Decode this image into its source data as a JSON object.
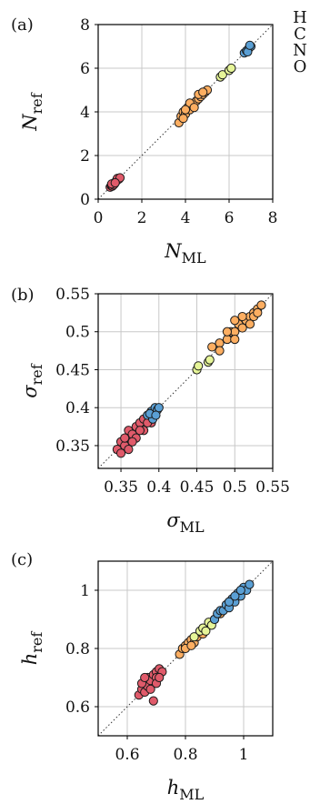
{
  "legend": {
    "placement": "top-right",
    "entries": [
      "H",
      "C",
      "N",
      "O"
    ]
  },
  "colors": {
    "H": "#e05a6a",
    "C": "#fdae61",
    "N": "#e6f598",
    "O": "#5a9fd4"
  },
  "chart_data": [
    {
      "type": "scatter",
      "panel_label": "(a)",
      "xlabel_base": "N",
      "xlabel_sub": "ML",
      "ylabel_base": "N",
      "ylabel_sub": "ref",
      "xlim": [
        0,
        8
      ],
      "ylim": [
        0,
        8
      ],
      "xticks": [
        0,
        2,
        4,
        6,
        8
      ],
      "yticks": [
        0,
        2,
        4,
        6,
        8
      ],
      "xtick_labels": [
        "0",
        "2",
        "4",
        "6",
        "8"
      ],
      "ytick_labels": [
        "0",
        "2",
        "4",
        "6",
        "8"
      ],
      "grid": true,
      "series": [
        {
          "element": "H",
          "points": [
            [
              0.55,
              0.55
            ],
            [
              0.6,
              0.62
            ],
            [
              0.65,
              0.6
            ],
            [
              0.7,
              0.72
            ],
            [
              0.75,
              0.7
            ],
            [
              0.8,
              0.8
            ],
            [
              0.85,
              0.85
            ],
            [
              0.9,
              0.9
            ],
            [
              0.95,
              0.92
            ],
            [
              0.7,
              0.65
            ],
            [
              0.62,
              0.7
            ],
            [
              0.88,
              0.95
            ],
            [
              1.0,
              0.98
            ],
            [
              0.78,
              0.75
            ]
          ]
        },
        {
          "element": "C",
          "points": [
            [
              3.7,
              3.5
            ],
            [
              3.8,
              3.8
            ],
            [
              3.9,
              4.0
            ],
            [
              4.0,
              3.9
            ],
            [
              4.1,
              4.2
            ],
            [
              4.2,
              4.1
            ],
            [
              4.3,
              4.3
            ],
            [
              4.4,
              4.4
            ],
            [
              4.5,
              4.5
            ],
            [
              4.6,
              4.6
            ],
            [
              4.7,
              4.7
            ],
            [
              4.8,
              4.8
            ],
            [
              4.9,
              4.9
            ],
            [
              5.0,
              5.0
            ],
            [
              4.2,
              4.4
            ],
            [
              4.4,
              4.2
            ],
            [
              4.6,
              4.8
            ],
            [
              3.9,
              3.7
            ],
            [
              4.0,
              4.1
            ],
            [
              4.8,
              4.9
            ]
          ]
        },
        {
          "element": "N",
          "points": [
            [
              5.6,
              5.6
            ],
            [
              5.7,
              5.7
            ],
            [
              6.0,
              5.9
            ],
            [
              6.1,
              6.0
            ]
          ]
        },
        {
          "element": "O",
          "points": [
            [
              6.7,
              6.7
            ],
            [
              6.8,
              6.8
            ],
            [
              6.9,
              6.9
            ],
            [
              7.0,
              7.0
            ],
            [
              6.85,
              6.75
            ],
            [
              6.95,
              7.05
            ]
          ]
        }
      ]
    },
    {
      "type": "scatter",
      "panel_label": "(b)",
      "xlabel_base": "σ",
      "xlabel_sub": "ML",
      "ylabel_base": "σ",
      "ylabel_sub": "ref",
      "xlim": [
        0.32,
        0.55
      ],
      "ylim": [
        0.32,
        0.55
      ],
      "xticks": [
        0.35,
        0.4,
        0.45,
        0.5,
        0.55
      ],
      "yticks": [
        0.35,
        0.4,
        0.45,
        0.5,
        0.55
      ],
      "xtick_labels": [
        "0.35",
        "0.4",
        "0.45",
        "0.5",
        "0.55"
      ],
      "ytick_labels": [
        "0.35",
        "0.4",
        "0.45",
        "0.5",
        "0.55"
      ],
      "grid": true,
      "series": [
        {
          "element": "H",
          "points": [
            [
              0.345,
              0.345
            ],
            [
              0.35,
              0.34
            ],
            [
              0.35,
              0.355
            ],
            [
              0.355,
              0.35
            ],
            [
              0.36,
              0.36
            ],
            [
              0.36,
              0.37
            ],
            [
              0.365,
              0.365
            ],
            [
              0.37,
              0.375
            ],
            [
              0.37,
              0.36
            ],
            [
              0.375,
              0.38
            ],
            [
              0.38,
              0.385
            ],
            [
              0.38,
              0.37
            ],
            [
              0.385,
              0.39
            ],
            [
              0.39,
              0.395
            ],
            [
              0.39,
              0.38
            ],
            [
              0.355,
              0.36
            ],
            [
              0.365,
              0.355
            ],
            [
              0.375,
              0.37
            ],
            [
              0.385,
              0.38
            ],
            [
              0.36,
              0.345
            ]
          ]
        },
        {
          "element": "C",
          "points": [
            [
              0.47,
              0.48
            ],
            [
              0.48,
              0.485
            ],
            [
              0.49,
              0.49
            ],
            [
              0.495,
              0.5
            ],
            [
              0.5,
              0.5
            ],
            [
              0.505,
              0.51
            ],
            [
              0.51,
              0.505
            ],
            [
              0.515,
              0.515
            ],
            [
              0.52,
              0.52
            ],
            [
              0.525,
              0.525
            ],
            [
              0.53,
              0.53
            ],
            [
              0.535,
              0.535
            ],
            [
              0.49,
              0.5
            ],
            [
              0.5,
              0.49
            ],
            [
              0.51,
              0.52
            ],
            [
              0.52,
              0.51
            ],
            [
              0.48,
              0.475
            ],
            [
              0.5,
              0.515
            ],
            [
              0.525,
              0.52
            ],
            [
              0.53,
              0.525
            ]
          ]
        },
        {
          "element": "N",
          "points": [
            [
              0.45,
              0.45
            ],
            [
              0.452,
              0.455
            ],
            [
              0.465,
              0.46
            ],
            [
              0.467,
              0.463
            ]
          ]
        },
        {
          "element": "O",
          "points": [
            [
              0.385,
              0.39
            ],
            [
              0.39,
              0.395
            ],
            [
              0.395,
              0.4
            ],
            [
              0.398,
              0.397
            ],
            [
              0.4,
              0.4
            ],
            [
              0.392,
              0.385
            ],
            [
              0.388,
              0.392
            ],
            [
              0.396,
              0.39
            ]
          ]
        }
      ]
    },
    {
      "type": "scatter",
      "panel_label": "(c)",
      "xlabel_base": "h",
      "xlabel_sub": "ML",
      "ylabel_base": "h",
      "ylabel_sub": "ref",
      "xlim": [
        0.5,
        1.1
      ],
      "ylim": [
        0.5,
        1.1
      ],
      "xticks": [
        0.6,
        0.8,
        1.0
      ],
      "yticks": [
        0.6,
        0.8,
        1.0
      ],
      "xtick_labels": [
        "0.6",
        "0.8",
        "1"
      ],
      "ytick_labels": [
        "0.6",
        "0.8",
        "1"
      ],
      "grid": true,
      "series": [
        {
          "element": "H",
          "points": [
            [
              0.64,
              0.64
            ],
            [
              0.65,
              0.66
            ],
            [
              0.66,
              0.65
            ],
            [
              0.66,
              0.68
            ],
            [
              0.67,
              0.67
            ],
            [
              0.67,
              0.7
            ],
            [
              0.68,
              0.69
            ],
            [
              0.69,
              0.71
            ],
            [
              0.7,
              0.72
            ],
            [
              0.7,
              0.7
            ],
            [
              0.71,
              0.73
            ],
            [
              0.72,
              0.72
            ],
            [
              0.65,
              0.68
            ],
            [
              0.68,
              0.66
            ],
            [
              0.69,
              0.62
            ],
            [
              0.66,
              0.7
            ],
            [
              0.7,
              0.68
            ],
            [
              0.71,
              0.7
            ]
          ]
        },
        {
          "element": "C",
          "points": [
            [
              0.78,
              0.78
            ],
            [
              0.79,
              0.8
            ],
            [
              0.8,
              0.81
            ],
            [
              0.81,
              0.82
            ],
            [
              0.82,
              0.83
            ],
            [
              0.83,
              0.82
            ],
            [
              0.85,
              0.85
            ],
            [
              0.87,
              0.87
            ],
            [
              0.88,
              0.88
            ],
            [
              0.9,
              0.9
            ],
            [
              0.92,
              0.92
            ],
            [
              0.94,
              0.94
            ],
            [
              0.95,
              0.96
            ],
            [
              0.97,
              0.97
            ],
            [
              0.98,
              0.98
            ],
            [
              1.0,
              1.0
            ],
            [
              0.8,
              0.8
            ],
            [
              0.82,
              0.81
            ],
            [
              0.84,
              0.84
            ],
            [
              0.86,
              0.85
            ]
          ]
        },
        {
          "element": "N",
          "points": [
            [
              0.83,
              0.84
            ],
            [
              0.85,
              0.86
            ],
            [
              0.86,
              0.87
            ],
            [
              0.87,
              0.86
            ],
            [
              0.88,
              0.89
            ],
            [
              0.89,
              0.88
            ]
          ]
        },
        {
          "element": "O",
          "points": [
            [
              0.9,
              0.9
            ],
            [
              0.91,
              0.92
            ],
            [
              0.92,
              0.93
            ],
            [
              0.93,
              0.93
            ],
            [
              0.94,
              0.95
            ],
            [
              0.95,
              0.94
            ],
            [
              0.96,
              0.97
            ],
            [
              0.97,
              0.96
            ],
            [
              0.98,
              0.99
            ],
            [
              0.99,
              0.98
            ],
            [
              1.0,
              1.01
            ],
            [
              1.01,
              1.0
            ],
            [
              1.02,
              1.02
            ],
            [
              0.95,
              0.96
            ],
            [
              0.97,
              0.98
            ],
            [
              0.99,
              1.0
            ]
          ]
        }
      ]
    }
  ]
}
